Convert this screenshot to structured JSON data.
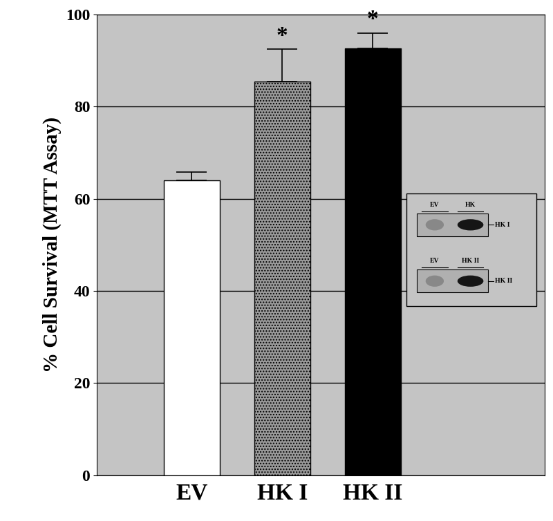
{
  "chart_data": {
    "type": "bar",
    "y_label": "% Cell Survival (MTT Assay)",
    "categories": [
      "EV",
      "HK I",
      "HK II"
    ],
    "values": [
      64,
      85.5,
      92.7
    ],
    "errors": [
      1.8,
      7.0,
      3.3
    ],
    "colors": [
      "#ffffff",
      "#9a9a9a",
      "#000000"
    ],
    "ylim": [
      0,
      100
    ],
    "yticks": [
      0,
      20,
      40,
      60,
      80,
      100
    ],
    "grid": true,
    "annotations": [
      {
        "category": "HK I",
        "text": "*"
      },
      {
        "category": "HK II",
        "text": "*"
      }
    ],
    "inset_blots": [
      {
        "lanes": [
          "EV",
          "HK"
        ],
        "label": "HK I"
      },
      {
        "lanes": [
          "EV",
          "HK II"
        ],
        "label": "HK II"
      }
    ]
  }
}
